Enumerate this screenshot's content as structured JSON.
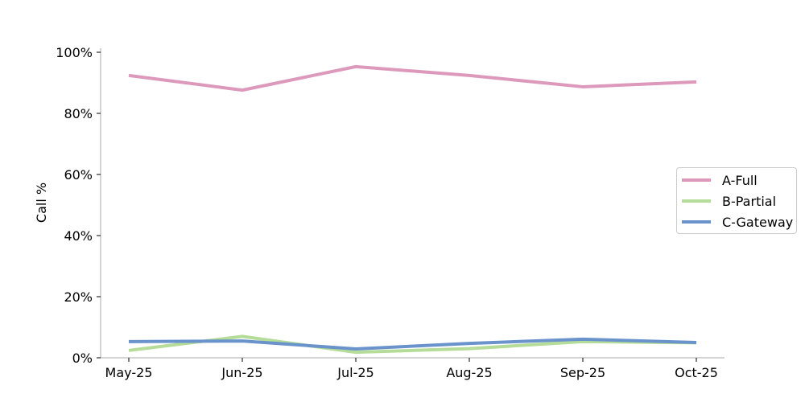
{
  "chart_data": {
    "type": "line",
    "title": "",
    "xlabel": "",
    "ylabel": "Call %",
    "categories": [
      "May-25",
      "Jun-25",
      "Jul-25",
      "Aug-25",
      "Sep-25",
      "Oct-25"
    ],
    "yticks": [
      "0%",
      "20%",
      "40%",
      "60%",
      "80%",
      "100%"
    ],
    "ylim": [
      0,
      100
    ],
    "grid": false,
    "legend_position": "right",
    "series": [
      {
        "name": "A-Full",
        "color": "#dd99bb",
        "values": [
          92.4,
          87.6,
          95.3,
          92.4,
          88.7,
          90.3
        ]
      },
      {
        "name": "B-Partial",
        "color": "#b5dd99",
        "values": [
          2.4,
          7.0,
          1.8,
          3.0,
          5.3,
          4.9
        ]
      },
      {
        "name": "C-Gateway",
        "color": "#6a93cc",
        "values": [
          5.3,
          5.5,
          2.9,
          4.7,
          6.1,
          5.0
        ]
      }
    ]
  }
}
